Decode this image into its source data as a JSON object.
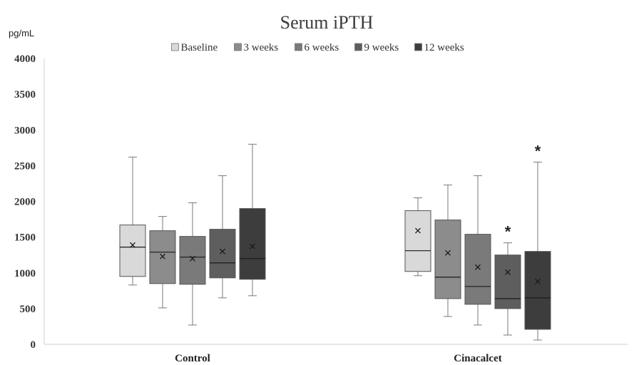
{
  "chart_data": {
    "type": "box",
    "title": "Serum iPTH",
    "ylabel": "pg/mL",
    "xlabel": "",
    "ylim": [
      0,
      4000
    ],
    "yticks": [
      0,
      500,
      1000,
      1500,
      2000,
      2500,
      3000,
      3500,
      4000
    ],
    "legend_position": "top",
    "grid": false,
    "categories": [
      "Control",
      "Cinacalcet"
    ],
    "series": [
      {
        "name": "Baseline",
        "color": "#d9d9d9",
        "boxes": [
          {
            "min": 830,
            "q1": 950,
            "median": 1360,
            "q3": 1670,
            "max": 2620,
            "mean": 1390
          },
          {
            "min": 960,
            "q1": 1020,
            "median": 1310,
            "q3": 1870,
            "max": 2050,
            "mean": 1590
          }
        ]
      },
      {
        "name": "3 weeks",
        "color": "#8c8c8c",
        "boxes": [
          {
            "min": 510,
            "q1": 850,
            "median": 1290,
            "q3": 1590,
            "max": 1790,
            "mean": 1230
          },
          {
            "min": 390,
            "q1": 640,
            "median": 940,
            "q3": 1740,
            "max": 2230,
            "mean": 1280
          }
        ]
      },
      {
        "name": "6 weeks",
        "color": "#7a7a7a",
        "boxes": [
          {
            "min": 270,
            "q1": 840,
            "median": 1220,
            "q3": 1510,
            "max": 1980,
            "mean": 1200
          },
          {
            "min": 270,
            "q1": 560,
            "median": 810,
            "q3": 1540,
            "max": 2360,
            "mean": 1080
          }
        ]
      },
      {
        "name": "9 weeks",
        "color": "#5e5e5e",
        "boxes": [
          {
            "min": 650,
            "q1": 930,
            "median": 1140,
            "q3": 1610,
            "max": 2360,
            "mean": 1300
          },
          {
            "min": 130,
            "q1": 500,
            "median": 640,
            "q3": 1250,
            "max": 1420,
            "mean": 1010
          }
        ]
      },
      {
        "name": "12 weeks",
        "color": "#3d3d3d",
        "boxes": [
          {
            "min": 680,
            "q1": 910,
            "median": 1200,
            "q3": 1900,
            "max": 2800,
            "mean": 1370
          },
          {
            "min": 60,
            "q1": 210,
            "median": 650,
            "q3": 1300,
            "max": 2550,
            "mean": 880
          }
        ]
      }
    ],
    "annotations": [
      {
        "text": "*",
        "category": "Cinacalcet",
        "series": "9 weeks"
      },
      {
        "text": "*",
        "category": "Cinacalcet",
        "series": "12 weeks"
      }
    ]
  }
}
